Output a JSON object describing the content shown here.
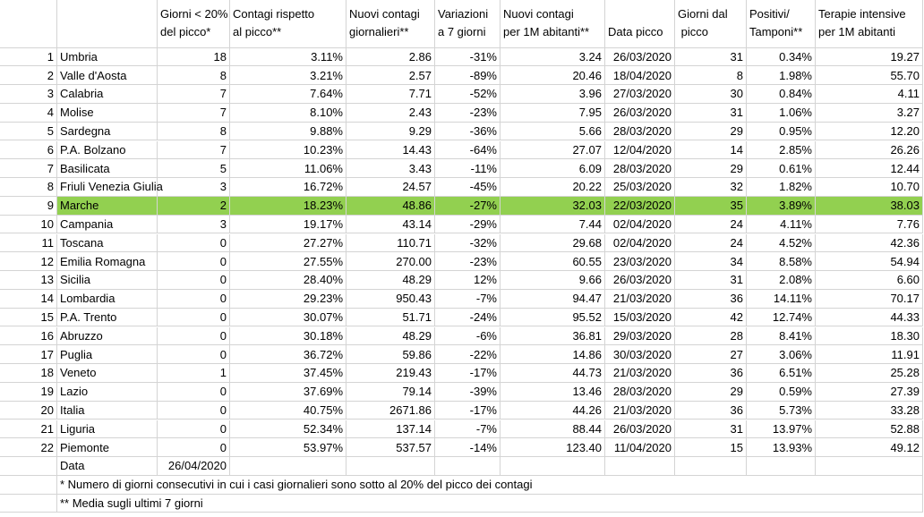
{
  "table": {
    "columns": [
      [
        "Giorni < 20%",
        "del picco*"
      ],
      [
        "Contagi rispetto",
        "al picco**"
      ],
      [
        "Nuovi contagi",
        "giornalieri**"
      ],
      [
        "Variazioni",
        "a 7 giorni"
      ],
      [
        "Nuovi contagi",
        "per 1M abitanti**"
      ],
      [
        "",
        "Data picco"
      ],
      [
        "Giorni dal",
        " picco"
      ],
      [
        "Positivi/",
        "Tamponi**"
      ],
      [
        "Terapie intensive",
        "per 1M abitanti"
      ]
    ],
    "rows": [
      [
        "1",
        "Umbria",
        "18",
        "3.11%",
        "2.86",
        "-31%",
        "3.24",
        "26/03/2020",
        "31",
        "0.34%",
        "19.27"
      ],
      [
        "2",
        "Valle d'Aosta",
        "8",
        "3.21%",
        "2.57",
        "-89%",
        "20.46",
        "18/04/2020",
        "8",
        "1.98%",
        "55.70"
      ],
      [
        "3",
        "Calabria",
        "7",
        "7.64%",
        "7.71",
        "-52%",
        "3.96",
        "27/03/2020",
        "30",
        "0.84%",
        "4.11"
      ],
      [
        "4",
        "Molise",
        "7",
        "8.10%",
        "2.43",
        "-23%",
        "7.95",
        "26/03/2020",
        "31",
        "1.06%",
        "3.27"
      ],
      [
        "5",
        "Sardegna",
        "8",
        "9.88%",
        "9.29",
        "-36%",
        "5.66",
        "28/03/2020",
        "29",
        "0.95%",
        "12.20"
      ],
      [
        "6",
        "P.A. Bolzano",
        "7",
        "10.23%",
        "14.43",
        "-64%",
        "27.07",
        "12/04/2020",
        "14",
        "2.85%",
        "26.26"
      ],
      [
        "7",
        "Basilicata",
        "5",
        "11.06%",
        "3.43",
        "-11%",
        "6.09",
        "28/03/2020",
        "29",
        "0.61%",
        "12.44"
      ],
      [
        "8",
        "Friuli Venezia Giulia",
        "3",
        "16.72%",
        "24.57",
        "-45%",
        "20.22",
        "25/03/2020",
        "32",
        "1.82%",
        "10.70"
      ],
      [
        "9",
        "Marche",
        "2",
        "18.23%",
        "48.86",
        "-27%",
        "32.03",
        "22/03/2020",
        "35",
        "3.89%",
        "38.03"
      ],
      [
        "10",
        "Campania",
        "3",
        "19.17%",
        "43.14",
        "-29%",
        "7.44",
        "02/04/2020",
        "24",
        "4.11%",
        "7.76"
      ],
      [
        "11",
        "Toscana",
        "0",
        "27.27%",
        "110.71",
        "-32%",
        "29.68",
        "02/04/2020",
        "24",
        "4.52%",
        "42.36"
      ],
      [
        "12",
        "Emilia Romagna",
        "0",
        "27.55%",
        "270.00",
        "-23%",
        "60.55",
        "23/03/2020",
        "34",
        "8.58%",
        "54.94"
      ],
      [
        "13",
        "Sicilia",
        "0",
        "28.40%",
        "48.29",
        "12%",
        "9.66",
        "26/03/2020",
        "31",
        "2.08%",
        "6.60"
      ],
      [
        "14",
        "Lombardia",
        "0",
        "29.23%",
        "950.43",
        "-7%",
        "94.47",
        "21/03/2020",
        "36",
        "14.11%",
        "70.17"
      ],
      [
        "15",
        "P.A. Trento",
        "0",
        "30.07%",
        "51.71",
        "-24%",
        "95.52",
        "15/03/2020",
        "42",
        "12.74%",
        "44.33"
      ],
      [
        "16",
        "Abruzzo",
        "0",
        "30.18%",
        "48.29",
        "-6%",
        "36.81",
        "29/03/2020",
        "28",
        "8.41%",
        "18.30"
      ],
      [
        "17",
        "Puglia",
        "0",
        "36.72%",
        "59.86",
        "-22%",
        "14.86",
        "30/03/2020",
        "27",
        "3.06%",
        "11.91"
      ],
      [
        "18",
        "Veneto",
        "1",
        "37.45%",
        "219.43",
        "-17%",
        "44.73",
        "21/03/2020",
        "36",
        "6.51%",
        "25.28"
      ],
      [
        "19",
        "Lazio",
        "0",
        "37.69%",
        "79.14",
        "-39%",
        "13.46",
        "28/03/2020",
        "29",
        "0.59%",
        "27.39"
      ],
      [
        "20",
        "Italia",
        "0",
        "40.75%",
        "2671.86",
        "-17%",
        "44.26",
        "21/03/2020",
        "36",
        "5.73%",
        "33.28"
      ],
      [
        "21",
        "Liguria",
        "0",
        "52.34%",
        "137.14",
        "-7%",
        "88.44",
        "26/03/2020",
        "31",
        "13.97%",
        "52.88"
      ],
      [
        "22",
        "Piemonte",
        "0",
        "53.97%",
        "537.57",
        "-14%",
        "123.40",
        "11/04/2020",
        "15",
        "13.93%",
        "49.12"
      ]
    ],
    "date_label": "Data",
    "date": "26/04/2020",
    "notes": [
      "* Numero di giorni consecutivi in cui i casi giornalieri sono sotto al 20% del picco dei contagi",
      "** Media sugli ultimi 7 giorni"
    ]
  }
}
